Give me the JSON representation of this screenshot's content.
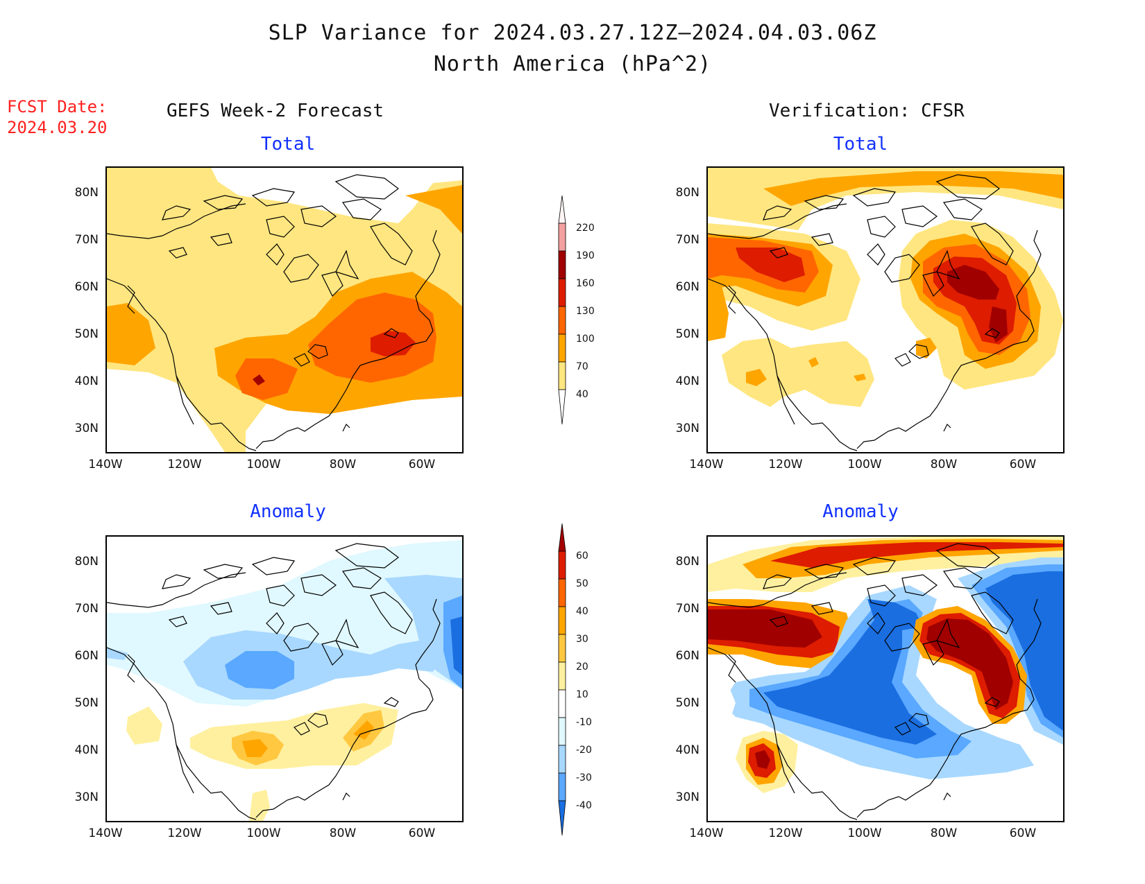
{
  "title_line1": "SLP Variance for 2024.03.27.12Z–2024.04.03.06Z",
  "title_line2": "North America (hPa^2)",
  "fcst_label": "FCST Date:",
  "fcst_date": "2024.03.20",
  "left_header": "GEFS Week-2 Forecast",
  "right_header": "Verification: CFSR",
  "panel_titles": {
    "top_left": "Total",
    "top_right": "Total",
    "bottom_left": "Anomaly",
    "bottom_right": "Anomaly"
  },
  "lat_labels": [
    "80N",
    "70N",
    "60N",
    "50N",
    "40N",
    "30N"
  ],
  "lon_labels": [
    "140W",
    "120W",
    "100W",
    "80W",
    "60W"
  ],
  "total_colorbar": {
    "levels": [
      "220",
      "190",
      "160",
      "130",
      "100",
      "70",
      "40"
    ],
    "colors": [
      "#fde0e0",
      "#f4a0a0",
      "#a00000",
      "#dd1c00",
      "#ff6600",
      "#ffa500",
      "#ffe680"
    ]
  },
  "anomaly_colorbar": {
    "levels": [
      "60",
      "50",
      "40",
      "30",
      "20",
      "10",
      "-10",
      "-20",
      "-30",
      "-40"
    ],
    "colors": [
      "#a50000",
      "#dd1c00",
      "#ff6600",
      "#ffa500",
      "#ffc840",
      "#fff0a0",
      "#ffffff",
      "#e0f8ff",
      "#a8d8ff",
      "#5aa8ff",
      "#1a6ee0"
    ]
  },
  "map_extent": {
    "lon": [
      -140,
      -50
    ],
    "lat": [
      25,
      85
    ]
  }
}
